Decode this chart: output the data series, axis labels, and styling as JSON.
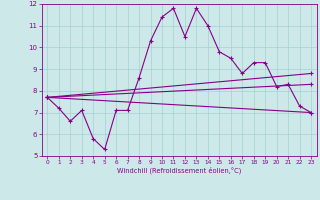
{
  "xlabel": "Windchill (Refroidissement éolien,°C)",
  "bg_color": "#cce8e8",
  "line_color": "#880088",
  "xmin": 0,
  "xmax": 23,
  "ymin": 5,
  "ymax": 12,
  "yticks": [
    5,
    6,
    7,
    8,
    9,
    10,
    11,
    12
  ],
  "xticks": [
    0,
    1,
    2,
    3,
    4,
    5,
    6,
    7,
    8,
    9,
    10,
    11,
    12,
    13,
    14,
    15,
    16,
    17,
    18,
    19,
    20,
    21,
    22,
    23
  ],
  "series1_x": [
    0,
    1,
    2,
    3,
    4,
    5,
    6,
    7,
    8,
    9,
    10,
    11,
    12,
    13,
    14,
    15,
    16,
    17,
    18,
    19,
    20,
    21,
    22,
    23
  ],
  "series1_y": [
    7.7,
    7.2,
    6.6,
    7.1,
    5.8,
    5.3,
    7.1,
    7.1,
    8.6,
    10.3,
    11.4,
    11.8,
    10.5,
    11.8,
    11.0,
    9.8,
    9.5,
    8.8,
    9.3,
    9.3,
    8.2,
    8.3,
    7.3,
    7.0
  ],
  "series2_x": [
    0,
    23
  ],
  "series2_y": [
    7.7,
    7.0
  ],
  "series3_x": [
    0,
    23
  ],
  "series3_y": [
    7.7,
    8.8
  ],
  "series4_x": [
    0,
    23
  ],
  "series4_y": [
    7.7,
    8.3
  ]
}
